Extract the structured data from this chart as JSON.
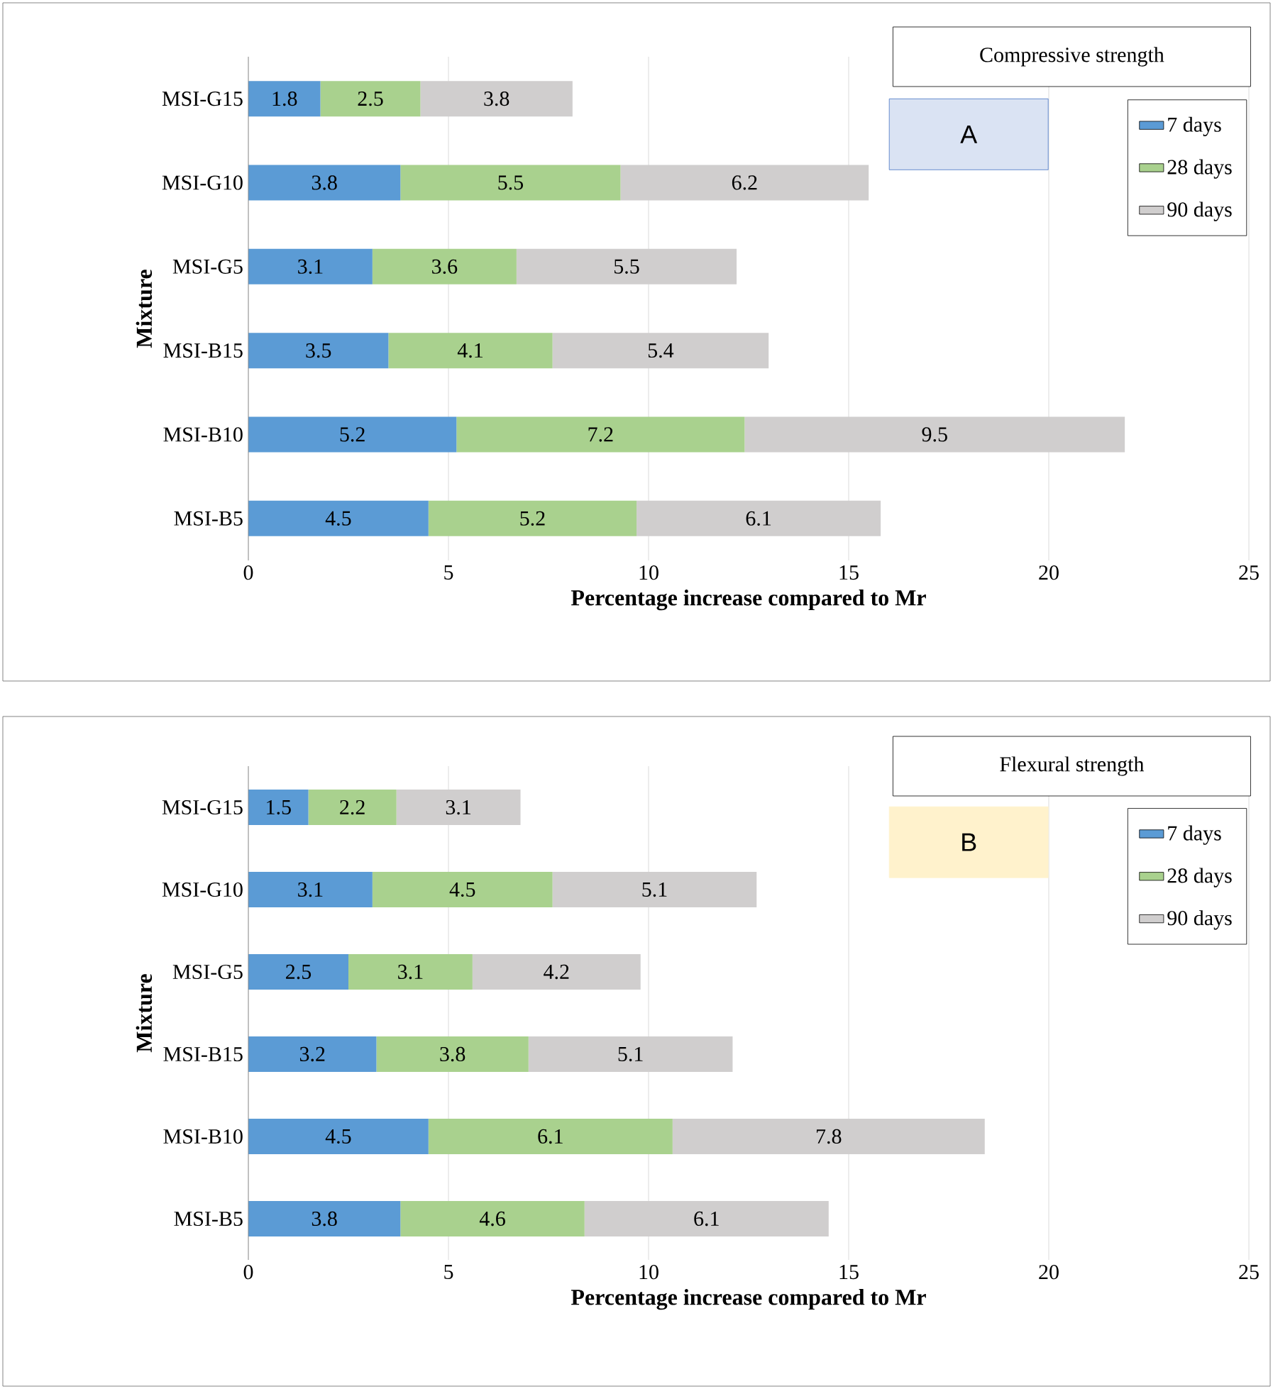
{
  "chart_data": [
    {
      "type": "bar",
      "orientation": "horizontal",
      "stacked": true,
      "title": "Compressive strength",
      "annotations": [
        "A"
      ],
      "xlabel": "Percentage increase compared to Mr",
      "ylabel": "Mixture",
      "categories": [
        "MSI-G15",
        "MSI-G10",
        "MSI-G5",
        "MSI-B15",
        "MSI-B10",
        "MSI-B5"
      ],
      "series": [
        {
          "name": "7 days",
          "color": "#5b9bd5",
          "values": [
            1.8,
            3.8,
            3.1,
            3.5,
            5.2,
            4.5
          ]
        },
        {
          "name": "28 days",
          "color": "#a9d18e",
          "values": [
            2.5,
            5.5,
            3.6,
            4.1,
            7.2,
            5.2
          ]
        },
        {
          "name": "90 days",
          "color": "#d0cece",
          "values": [
            3.8,
            6.2,
            5.5,
            5.4,
            9.5,
            6.1
          ]
        }
      ],
      "xlim": [
        0,
        25
      ],
      "xticks": [
        0,
        5,
        10,
        15,
        20,
        25
      ],
      "grid": "x",
      "legend": "top right",
      "data_labels": true
    },
    {
      "type": "bar",
      "orientation": "horizontal",
      "stacked": true,
      "title": "Flexural strength",
      "annotations": [
        "B"
      ],
      "xlabel": "Percentage increase compared to Mr",
      "ylabel": "Mixture",
      "categories": [
        "MSI-G15",
        "MSI-G10",
        "MSI-G5",
        "MSI-B15",
        "MSI-B10",
        "MSI-B5"
      ],
      "series": [
        {
          "name": "7 days",
          "color": "#5b9bd5",
          "values": [
            1.5,
            3.1,
            2.5,
            3.2,
            4.5,
            3.8
          ]
        },
        {
          "name": "28 days",
          "color": "#a9d18e",
          "values": [
            2.2,
            4.5,
            3.1,
            3.8,
            6.1,
            4.6
          ]
        },
        {
          "name": "90 days",
          "color": "#d0cece",
          "values": [
            3.1,
            5.1,
            4.2,
            5.1,
            7.8,
            6.1
          ]
        }
      ],
      "xlim": [
        0,
        25
      ],
      "xticks": [
        0,
        5,
        10,
        15,
        20,
        25
      ],
      "grid": "x",
      "legend": "top right",
      "data_labels": true
    }
  ]
}
